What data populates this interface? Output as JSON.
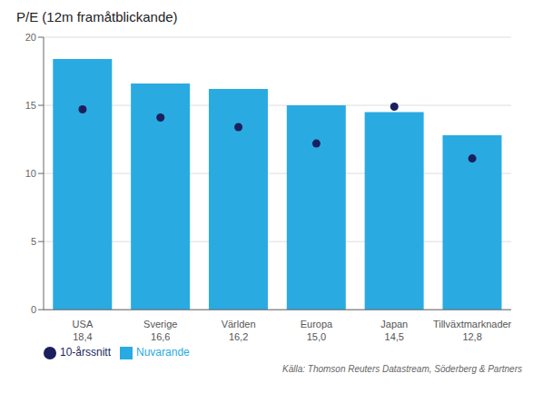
{
  "chart_data": {
    "type": "bar",
    "title": "P/E (12m framåtblickande)",
    "categories": [
      "USA\n18,4",
      "Sverige\n16,6",
      "Världen\n16,2",
      "Europa\n15,0",
      "Japan\n14,5",
      "Tillväxtmarknader\n12,8"
    ],
    "series": [
      {
        "name": "Nuvarande",
        "type": "bar",
        "color": "#29ABE2",
        "values": [
          18.4,
          16.6,
          16.2,
          15.0,
          14.5,
          12.8
        ]
      },
      {
        "name": "10-årssnitt",
        "type": "scatter",
        "color": "#1B1F5E",
        "values": [
          14.7,
          14.1,
          13.4,
          12.2,
          14.9,
          11.1
        ]
      }
    ],
    "ylim": [
      0,
      20
    ],
    "yticks": [
      0,
      5,
      10,
      15,
      20
    ],
    "grid": true,
    "legend": "lower left",
    "annotations": [
      "Källa: Thomson Reuters Datastream, Söderberg & Partners"
    ]
  }
}
